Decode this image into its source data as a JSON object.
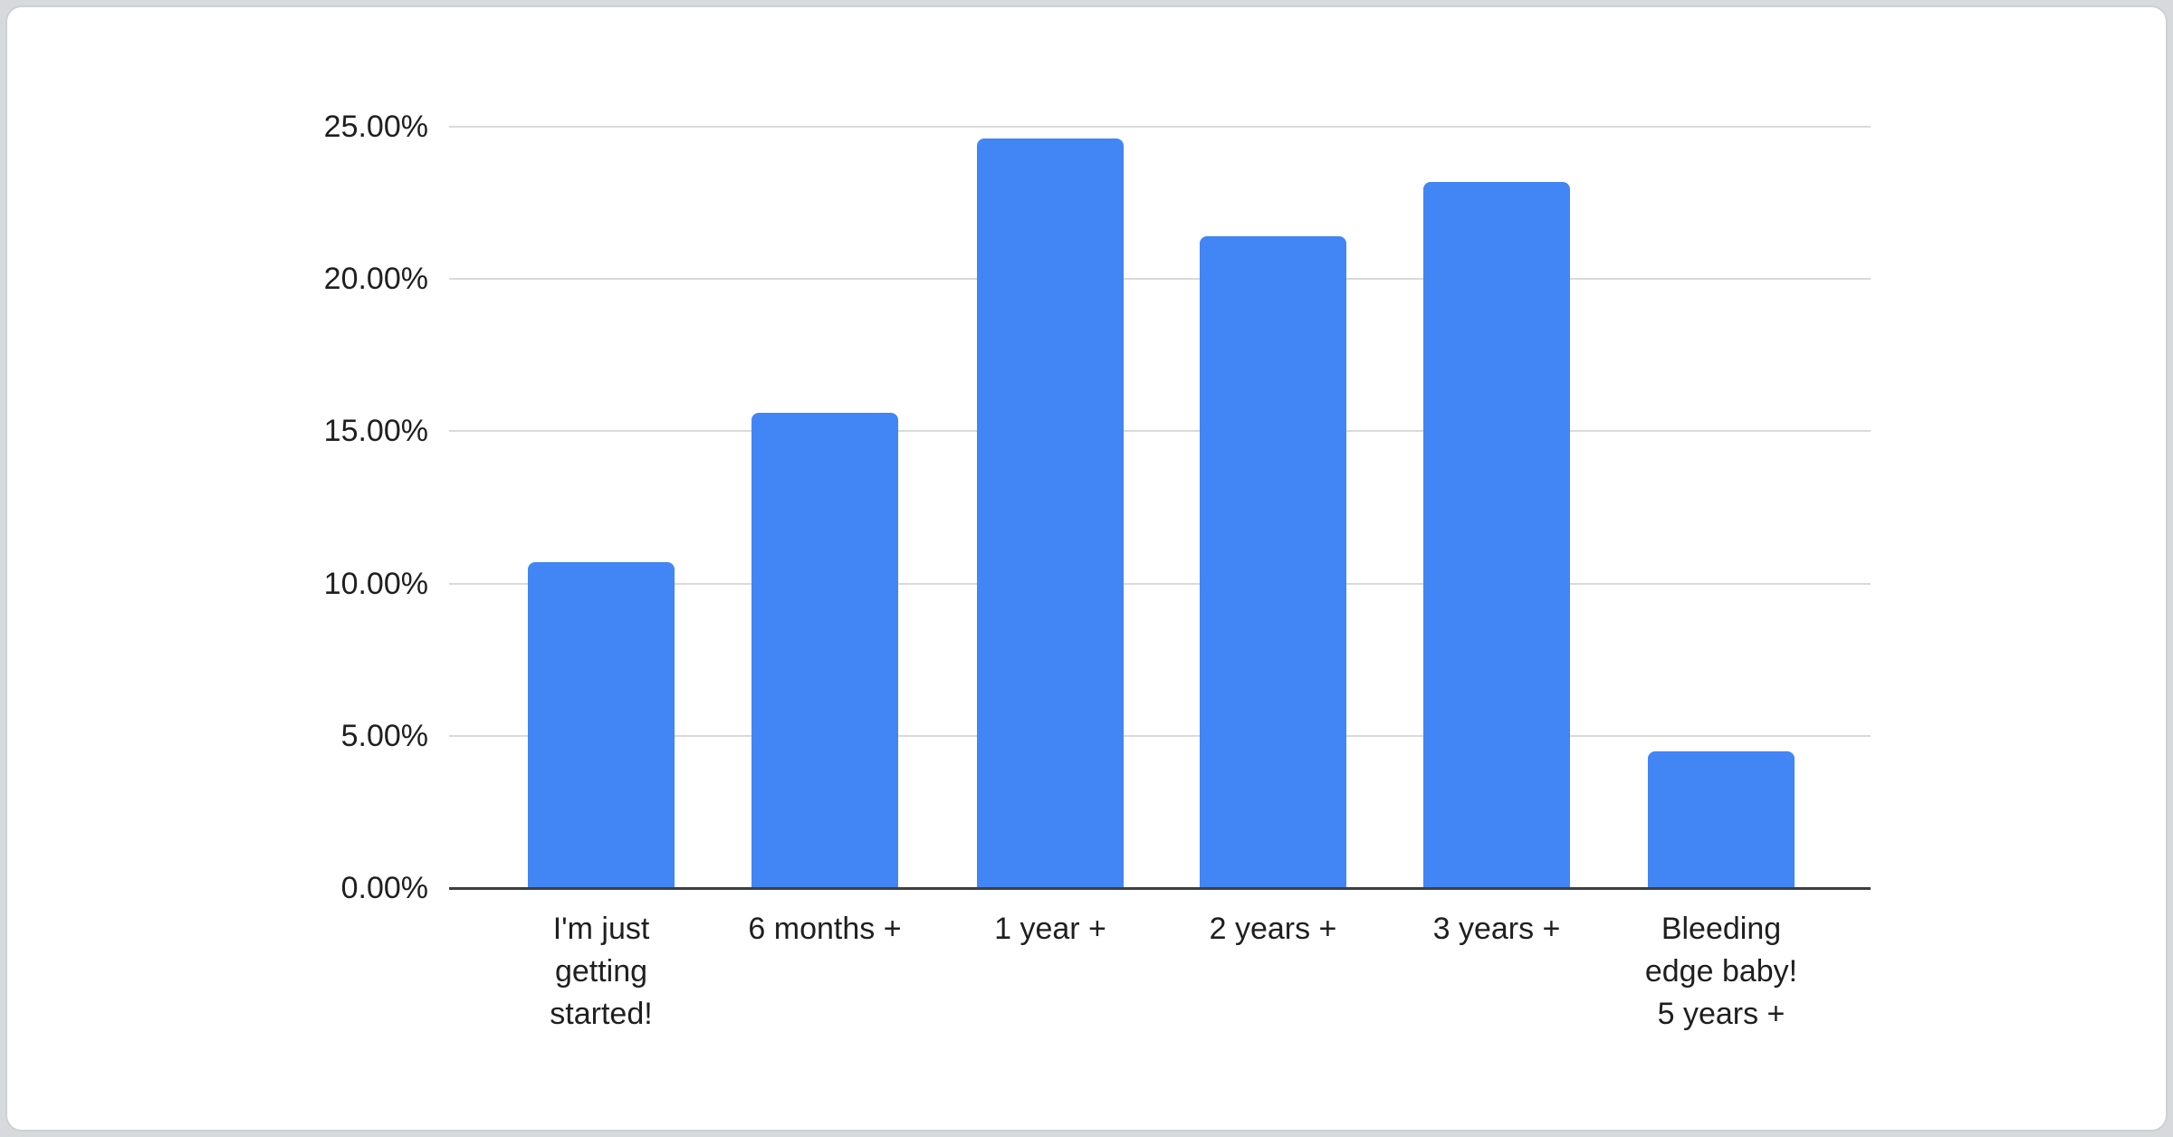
{
  "chart_data": {
    "type": "bar",
    "title": "",
    "xlabel": "",
    "ylabel": "",
    "categories": [
      "I'm just getting started!",
      "6 months +",
      "1 year +",
      "2 years +",
      "3 years +",
      "Bleeding edge baby! 5 years +"
    ],
    "values": [
      10.7,
      15.6,
      24.6,
      21.4,
      23.2,
      4.5
    ],
    "value_unit": "%",
    "ylim": [
      0,
      25
    ],
    "y_tick_step": 5,
    "y_tick_labels": [
      "0.00%",
      "5.00%",
      "10.00%",
      "15.00%",
      "20.00%",
      "25.00%"
    ],
    "x_tick_label_lines": [
      [
        "I'm just",
        "getting",
        "started!"
      ],
      [
        "6 months +"
      ],
      [
        "1 year +"
      ],
      [
        "2 years +"
      ],
      [
        "3 years +"
      ],
      [
        "Bleeding",
        "edge baby!",
        "5 years +"
      ]
    ],
    "grid": true,
    "legend": "none",
    "colors": {
      "bar": "#4285f4",
      "gridline": "#d9d9d9",
      "axis_line": "#3c4043",
      "tick_text": "#1f1f1f",
      "card_background": "#ffffff",
      "page_background": "#d7dadd"
    }
  }
}
